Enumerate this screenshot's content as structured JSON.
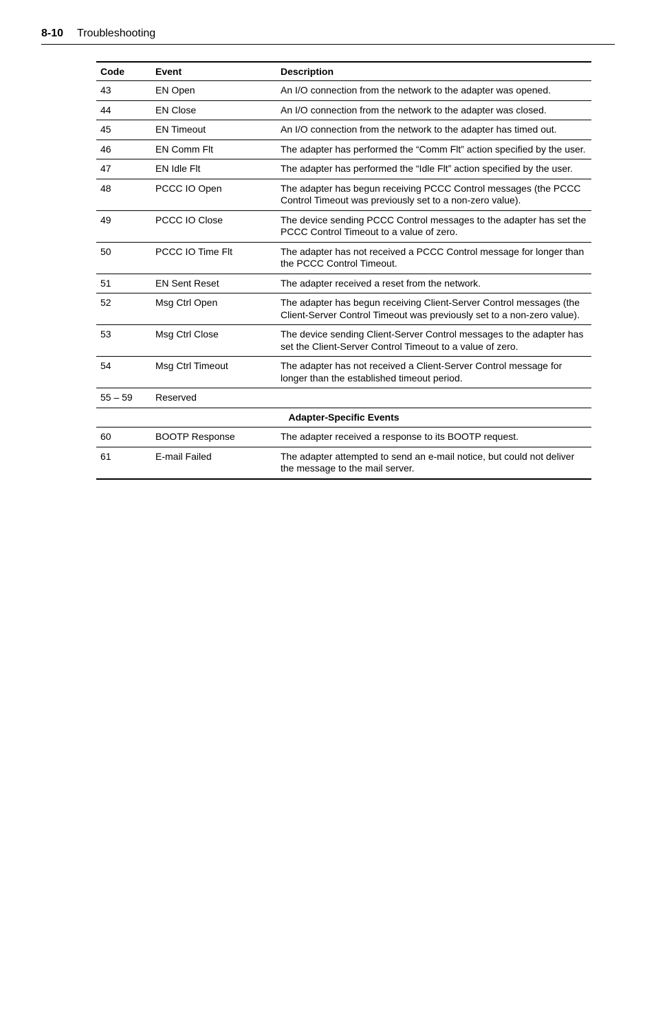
{
  "header": {
    "page_number": "8-10",
    "title": "Troubleshooting"
  },
  "table": {
    "columns": {
      "code": "Code",
      "event": "Event",
      "description": "Description"
    },
    "rows": [
      {
        "code": "43",
        "event": "EN Open",
        "desc": "An I/O connection from the network to the adapter was opened."
      },
      {
        "code": "44",
        "event": "EN Close",
        "desc": "An I/O connection from the network to the adapter was closed."
      },
      {
        "code": "45",
        "event": "EN Timeout",
        "desc": "An I/O connection from the network to the adapter has timed out."
      },
      {
        "code": "46",
        "event": "EN Comm Flt",
        "desc": "The adapter has performed the “Comm Flt” action specified by the user."
      },
      {
        "code": "47",
        "event": "EN Idle Flt",
        "desc": "The adapter has performed the “Idle Flt” action specified by the user."
      },
      {
        "code": "48",
        "event": "PCCC IO Open",
        "desc": "The adapter has begun receiving PCCC Control messages (the PCCC Control Timeout was previously set to a non-zero value)."
      },
      {
        "code": "49",
        "event": "PCCC IO Close",
        "desc": "The device sending PCCC Control messages to the adapter has set the PCCC Control Timeout to a value of zero."
      },
      {
        "code": "50",
        "event": "PCCC IO Time Flt",
        "desc": "The adapter has not received a PCCC Control message for longer than the PCCC Control Timeout."
      },
      {
        "code": "51",
        "event": "EN Sent Reset",
        "desc": "The adapter received a reset from the network."
      },
      {
        "code": "52",
        "event": "Msg Ctrl Open",
        "desc": "The adapter has begun receiving Client-Server Control messages (the Client-Server Control Timeout was previously set to a non-zero value)."
      },
      {
        "code": "53",
        "event": "Msg Ctrl Close",
        "desc": "The device sending Client-Server Control messages to the adapter has set the Client-Server Control Timeout to a value of zero."
      },
      {
        "code": "54",
        "event": "Msg Ctrl Timeout",
        "desc": "The adapter has not received a Client-Server Control message for longer than the established timeout period."
      },
      {
        "code": "55 – 59",
        "event": "Reserved",
        "desc": ""
      }
    ],
    "section_title": "Adapter-Specific Events",
    "rows2": [
      {
        "code": "60",
        "event": "BOOTP Response",
        "desc": "The adapter received a response to its BOOTP request."
      },
      {
        "code": "61",
        "event": "E-mail Failed",
        "desc": "The adapter attempted to send an e-mail notice, but could not deliver the message to the mail server."
      }
    ]
  }
}
